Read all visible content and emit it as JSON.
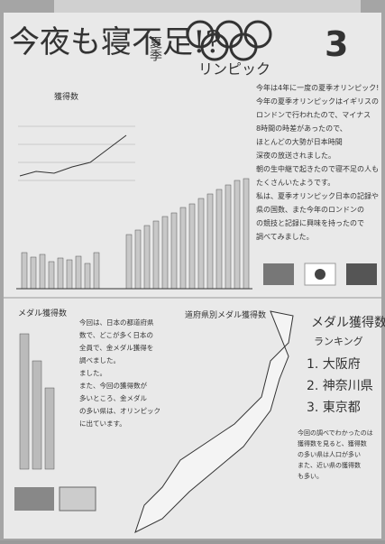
{
  "header": {
    "title": "今夜も寝不足!?",
    "subtitle": "夏季",
    "logo_text": "リンピック",
    "issue": "3"
  },
  "article": {
    "lines": [
      "今年は4年に一度の夏季オリンピック!",
      "今年の夏季オリンピックはイギリスの",
      "ロンドンで行われたので、マイナス",
      "8時間の時差があったので、",
      "ほとんどの大勢が日本時間",
      "深夜の放送されました。",
      "朝の生中継で起きたので寝不足の人も",
      "たくさんいたようです。",
      "私は、夏季オリンピック日本の記録や",
      "県の国数、また今年のロンドンの",
      "の競技と記録に興味を持ったので",
      "調べてみました。"
    ]
  },
  "charts": {
    "line_chart_title": "獲得数",
    "left_chart_title": "メダル獲得数"
  },
  "note": {
    "lines": [
      "今回は、日本の都道府県",
      "数で、どこが多く日本の",
      "全員で、金メダル獲得を",
      "調べました。",
      "ました。",
      "また、今回の獲得数が",
      "多いところ、金メダル",
      "の多い県は、オリンピック",
      "に出ています。"
    ]
  },
  "map_title": "道府県別メダル獲得数",
  "ranking": {
    "title": "メダル獲得数",
    "subtitle": "ランキング",
    "items": [
      "1. 大阪府",
      "2. 神奈川県",
      "3. 東京都"
    ]
  },
  "footnote": {
    "lines": [
      "今回の調べでわかったのは",
      "獲得数を見ると、獲得数",
      "の多い県は人口が多い",
      "また、近い県の獲得数",
      "も多い。"
    ]
  }
}
